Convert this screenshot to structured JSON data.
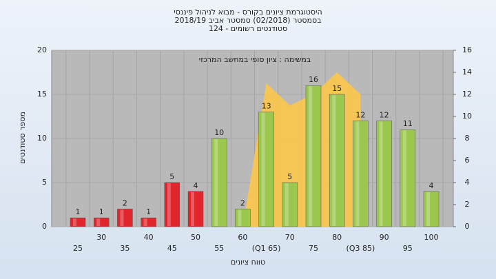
{
  "chart_data": {
    "type": "bar",
    "title": [
      "היסטוגרמת ציונים בקורס - מבוא לניהול פיננסי",
      "בסמסטר  (02/2018)  סמסטר אביב 2018/19",
      "סטודנטים רשומים - 124"
    ],
    "annotation": "במשימה : ציון סופי במחשב המרכזי",
    "x_label": "טווח ציונים",
    "y_label": "מספר סטודנטים",
    "categories": [
      "25",
      "30",
      "35",
      "40",
      "45",
      "50",
      "55",
      "60",
      "(Q1 65)",
      "70",
      "75",
      "80",
      "(Q3 85)",
      "90",
      "95",
      "100"
    ],
    "series": [
      {
        "values": [
          1,
          1,
          2,
          1,
          5,
          4,
          10,
          2,
          13,
          5,
          16,
          15,
          12,
          12,
          11,
          4
        ],
        "colors": [
          "#e0262c",
          "#e0262c",
          "#e0262c",
          "#e0262c",
          "#e0262c",
          "#e0262c",
          "#9cc74e",
          "#9cc74e",
          "#9cc74e",
          "#9cc74e",
          "#9cc74e",
          "#9cc74e",
          "#9cc74e",
          "#9cc74e",
          "#9cc74e",
          "#9cc74e"
        ]
      },
      {
        "axis": "y2",
        "color": "#fcc64a",
        "values": [
          null,
          null,
          null,
          null,
          null,
          null,
          null,
          0,
          13,
          11,
          12,
          14,
          12,
          null,
          null,
          null
        ]
      }
    ],
    "ylim": [
      0,
      20
    ],
    "yticks": [
      0,
      5,
      10,
      15,
      20
    ],
    "y2lim": [
      0,
      16
    ],
    "y2ticks": [
      0,
      2,
      4,
      6,
      8,
      10,
      12,
      14,
      16
    ],
    "grid": true
  }
}
